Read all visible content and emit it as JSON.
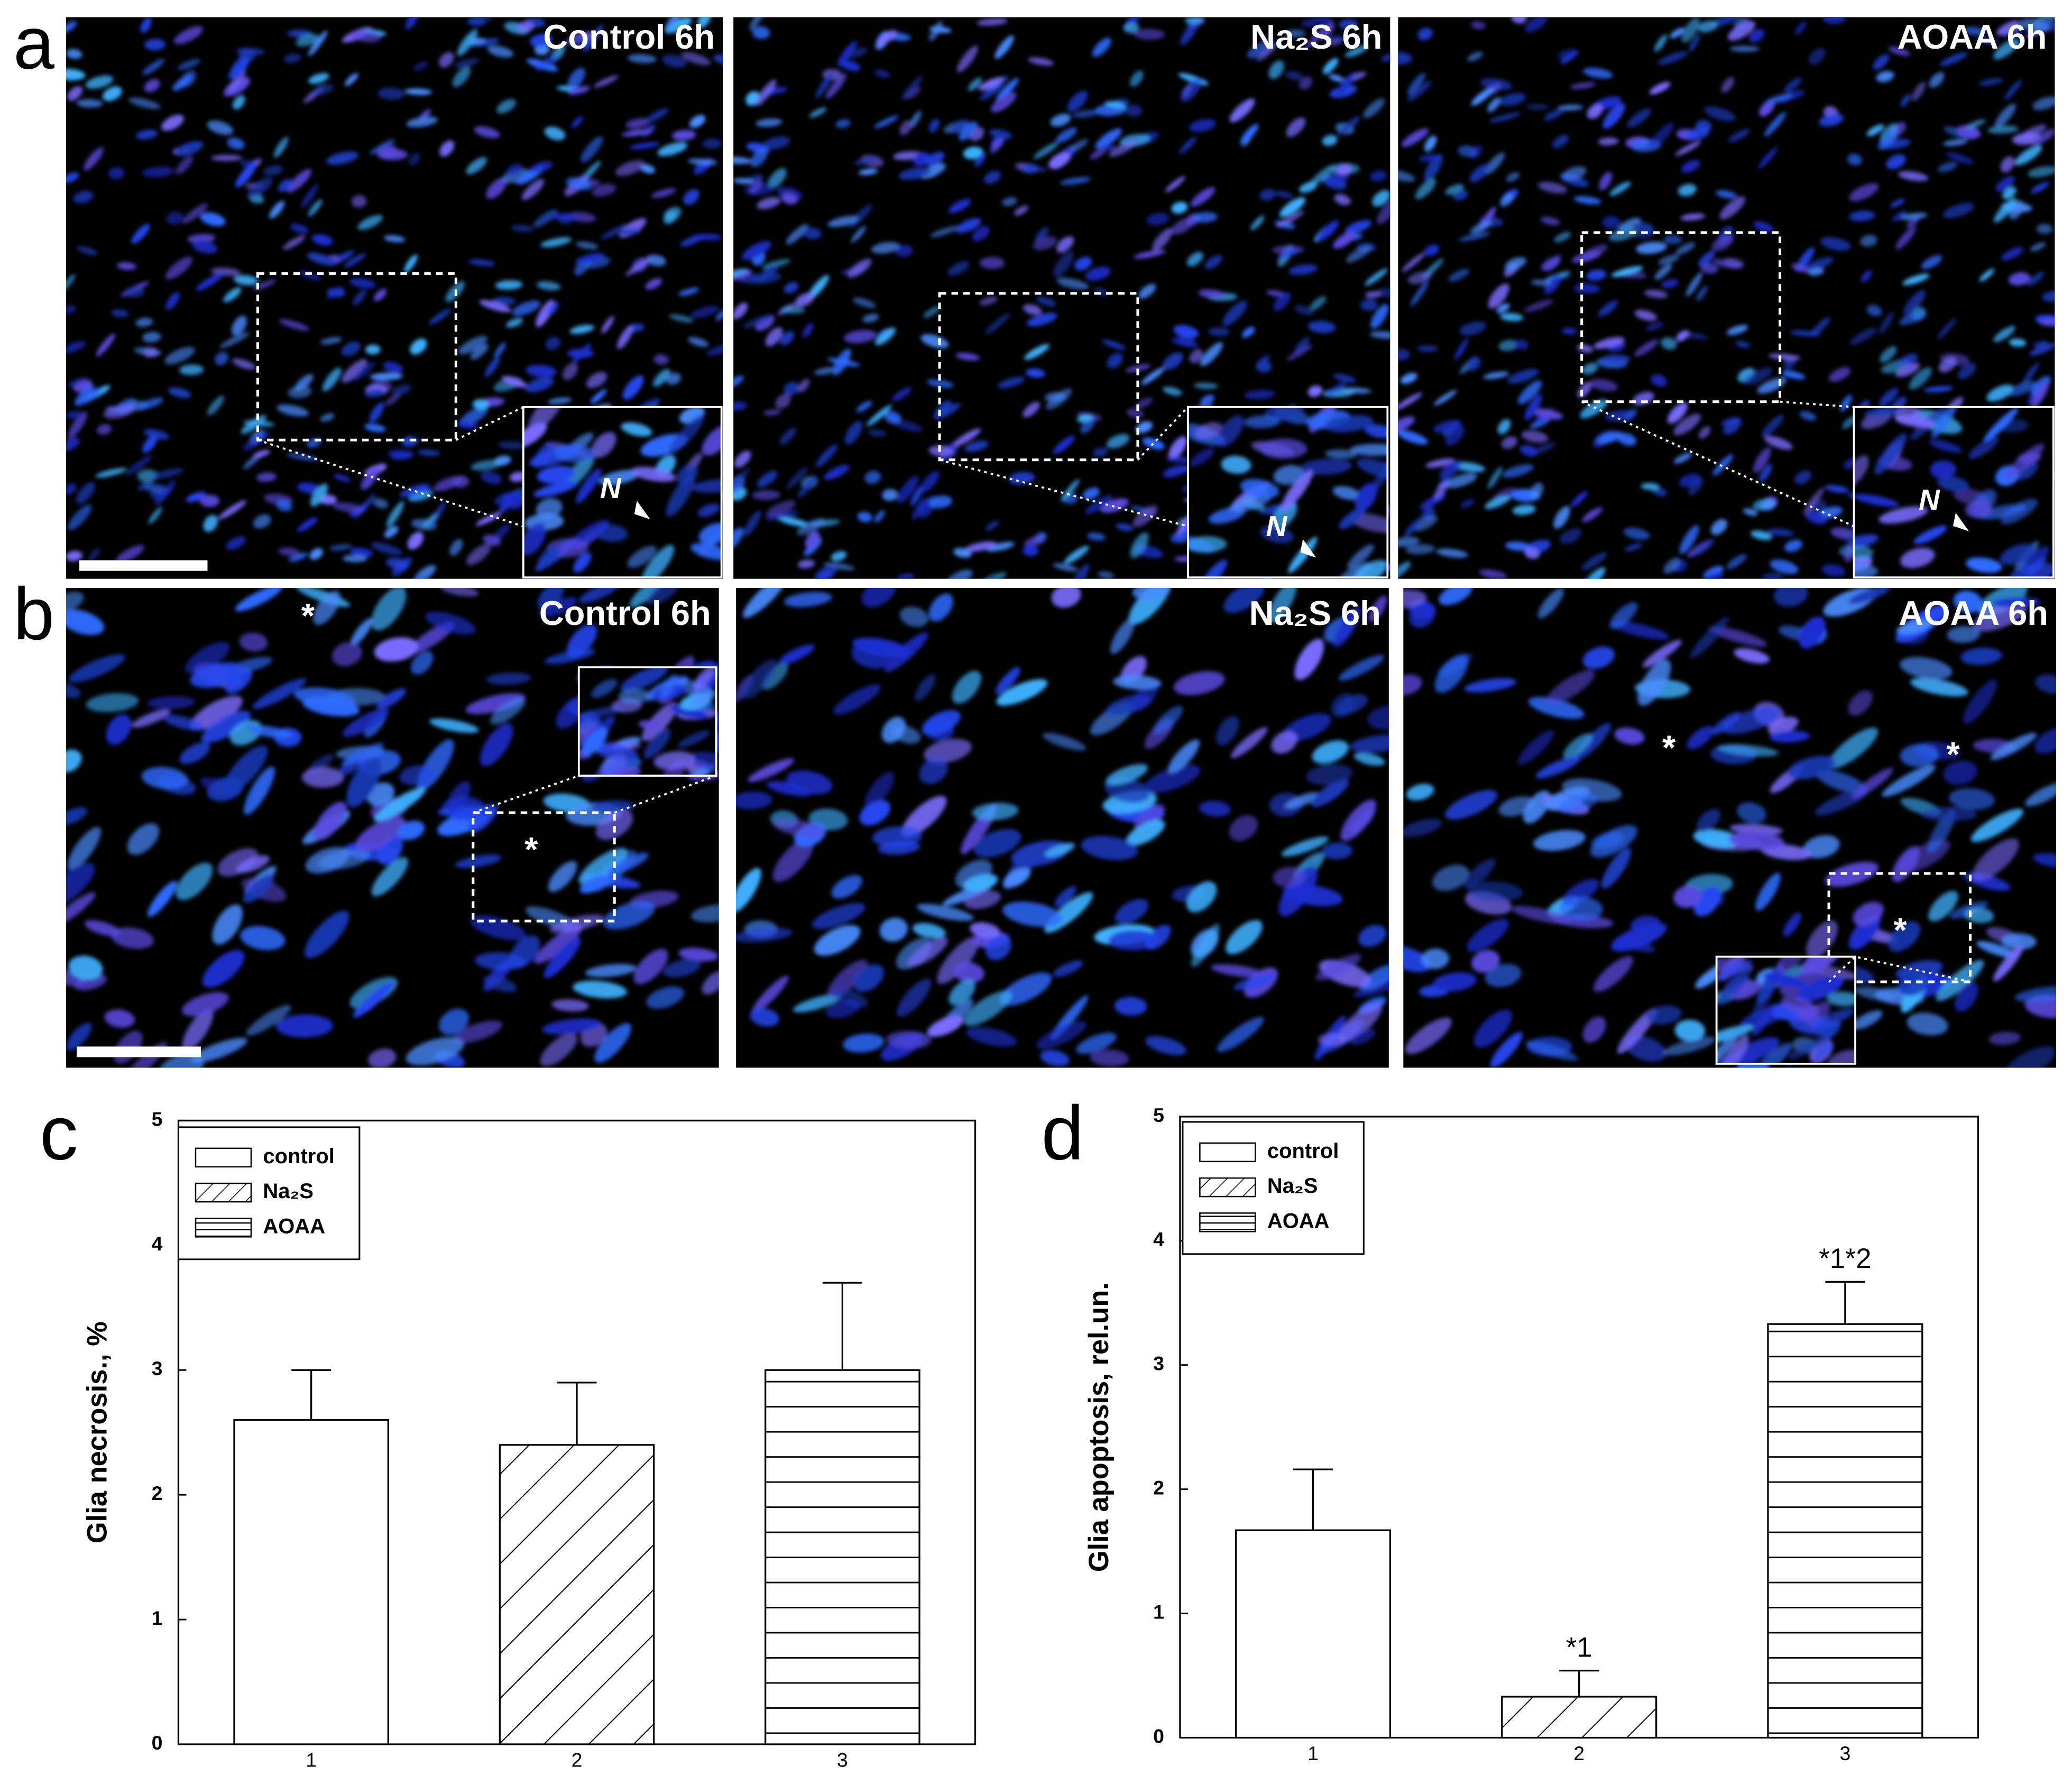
{
  "figure": {
    "panels": [
      {
        "label": "a",
        "images": [
          {
            "title": "Control 6h",
            "marks": [
              "N"
            ]
          },
          {
            "title": "Na₂S 6h",
            "marks": [
              "N"
            ]
          },
          {
            "title": "AOAA 6h",
            "marks": [
              "N"
            ]
          }
        ]
      },
      {
        "label": "b",
        "images": [
          {
            "title": "Control 6h",
            "marks": [
              "*",
              "*"
            ]
          },
          {
            "title": "Na₂S 6h",
            "marks": []
          },
          {
            "title": "AOAA 6h",
            "marks": [
              "*",
              "*",
              "*"
            ]
          }
        ]
      }
    ]
  },
  "chart_data": [
    {
      "type": "bar",
      "panel_label": "c",
      "y_label": "Glia necrosis., %",
      "categories": [
        "1",
        "2",
        "3"
      ],
      "series": [
        {
          "name": "control",
          "color": "#000000",
          "pattern": "none",
          "values": [
            2.6,
            null,
            null
          ],
          "errors": [
            0.4,
            null,
            null
          ]
        },
        {
          "name": "Na₂S",
          "color": "#000000",
          "pattern": "diagonal",
          "values": [
            null,
            2.4,
            null
          ],
          "errors": [
            null,
            0.5,
            null
          ]
        },
        {
          "name": "AOAA",
          "color": "#000000",
          "pattern": "horizontal",
          "values": [
            null,
            null,
            3.0
          ],
          "errors": [
            null,
            null,
            0.7
          ]
        }
      ],
      "ylim": [
        0,
        5
      ],
      "yticks": [
        0,
        1,
        2,
        3,
        4,
        5
      ],
      "legend": "upper-left"
    },
    {
      "type": "bar",
      "panel_label": "d",
      "y_label": "Glia apoptosis, rel.un.",
      "categories": [
        "1",
        "2",
        "3"
      ],
      "series": [
        {
          "name": "control",
          "color": "#000000",
          "pattern": "none",
          "values": [
            1.67,
            null,
            null
          ],
          "errors": [
            0.49,
            null,
            null
          ],
          "annotations": [
            null,
            null,
            null
          ]
        },
        {
          "name": "Na₂S",
          "color": "#000000",
          "pattern": "diagonal",
          "values": [
            null,
            0.33,
            null
          ],
          "errors": [
            null,
            0.21,
            null
          ],
          "annotations": [
            null,
            "*1",
            null
          ]
        },
        {
          "name": "AOAA",
          "color": "#000000",
          "pattern": "horizontal",
          "values": [
            null,
            null,
            3.33
          ],
          "errors": [
            null,
            null,
            0.34
          ],
          "annotations": [
            null,
            null,
            "*1*2"
          ]
        }
      ],
      "ylim": [
        0,
        5
      ],
      "yticks": [
        0,
        1,
        2,
        3,
        4,
        5
      ],
      "legend": "upper-left"
    }
  ]
}
